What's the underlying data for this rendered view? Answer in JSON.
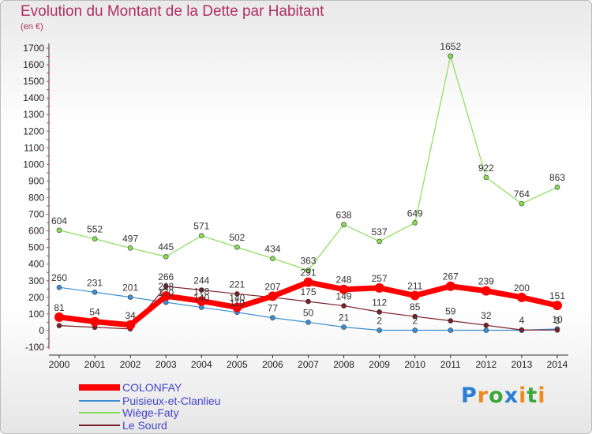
{
  "header": {
    "title": "Evolution du Montant de la Dette par Habitant",
    "subtitle": "(en €)"
  },
  "logo": {
    "text": "Proxiti"
  },
  "colors": {
    "title": "#b03060",
    "legend_text": "#4444cc",
    "axis_text": "#222222"
  },
  "chart_data": {
    "type": "line",
    "title": "Evolution du Montant de la Dette par Habitant",
    "subtitle": "(en €)",
    "xlabel": "",
    "ylabel": "",
    "x": [
      "2000",
      "2001",
      "2002",
      "2003",
      "2004",
      "2005",
      "2006",
      "2007",
      "2008",
      "2009",
      "2010",
      "2011",
      "2012",
      "2013",
      "2014"
    ],
    "ylim": [
      -100,
      1700
    ],
    "yticks": [
      -100,
      0,
      100,
      200,
      300,
      400,
      500,
      600,
      700,
      800,
      900,
      1000,
      1100,
      1200,
      1300,
      1400,
      1500,
      1600,
      1700
    ],
    "grid": false,
    "legend_position": "bottom-left",
    "series": [
      {
        "name": "COLONFAY",
        "color": "#ff0000",
        "values": [
          81,
          54,
          34,
          208,
          178,
          140,
          207,
          291,
          248,
          257,
          211,
          267,
          239,
          200,
          151
        ],
        "labels": [
          "81",
          "54",
          "34",
          "208",
          "178",
          "140",
          "207",
          "291",
          "248",
          "257",
          "211",
          "267",
          "239",
          "200",
          "151"
        ]
      },
      {
        "name": "Puisieux-et-Clanlieu",
        "color": "#3b8fd4",
        "values": [
          260,
          231,
          201,
          170,
          140,
          110,
          77,
          50,
          21,
          2,
          2,
          2,
          2,
          2,
          10
        ],
        "labels": [
          "260",
          "231",
          "201",
          "170",
          "140",
          "110",
          "77",
          "50",
          "21",
          "2",
          "2",
          "",
          "",
          "",
          "10"
        ]
      },
      {
        "name": "Wiège-Faty",
        "color": "#88dd55",
        "values": [
          604,
          552,
          497,
          445,
          571,
          502,
          434,
          363,
          638,
          537,
          649,
          1652,
          922,
          764,
          863
        ],
        "labels": [
          "604",
          "552",
          "497",
          "445",
          "571",
          "502",
          "434",
          "363",
          "638",
          "537",
          "649",
          "1652",
          "922",
          "764",
          "863"
        ]
      },
      {
        "name": "Le Sourd",
        "color": "#7a1f2a",
        "values": [
          30,
          20,
          10,
          266,
          244,
          221,
          200,
          175,
          149,
          112,
          85,
          59,
          32,
          4,
          3
        ],
        "labels": [
          "",
          "",
          "",
          "266",
          "244",
          "221",
          "",
          "175",
          "149",
          "112",
          "85",
          "59",
          "32",
          "4",
          "3"
        ]
      }
    ]
  }
}
